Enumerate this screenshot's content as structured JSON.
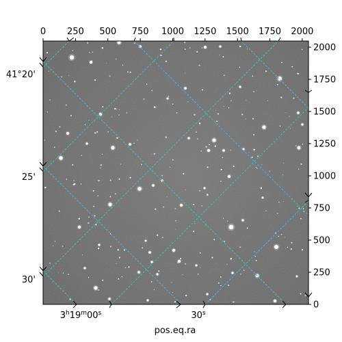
{
  "image": {
    "description_kind": "astronomical-sky-image",
    "colormap": "grayscale",
    "grid_color": "#2ec4c6"
  },
  "axes": {
    "top_ticks": [
      "0",
      "250",
      "500",
      "750",
      "1000",
      "1250",
      "1500",
      "1750",
      "2000"
    ],
    "right_ticks": [
      "0",
      "250",
      "500",
      "750",
      "1000",
      "1250",
      "1500",
      "1750",
      "2000"
    ],
    "left_ticks": [
      "41°20'",
      "25'",
      "30'"
    ],
    "bottom_ticks": [
      {
        "h": "3",
        "hsup": "h",
        "m": "19",
        "msup": "m",
        "s": "00",
        "ssup": "s"
      },
      {
        "s": "30",
        "ssup": "s"
      }
    ],
    "xlabel": "pos.eq.ra"
  }
}
